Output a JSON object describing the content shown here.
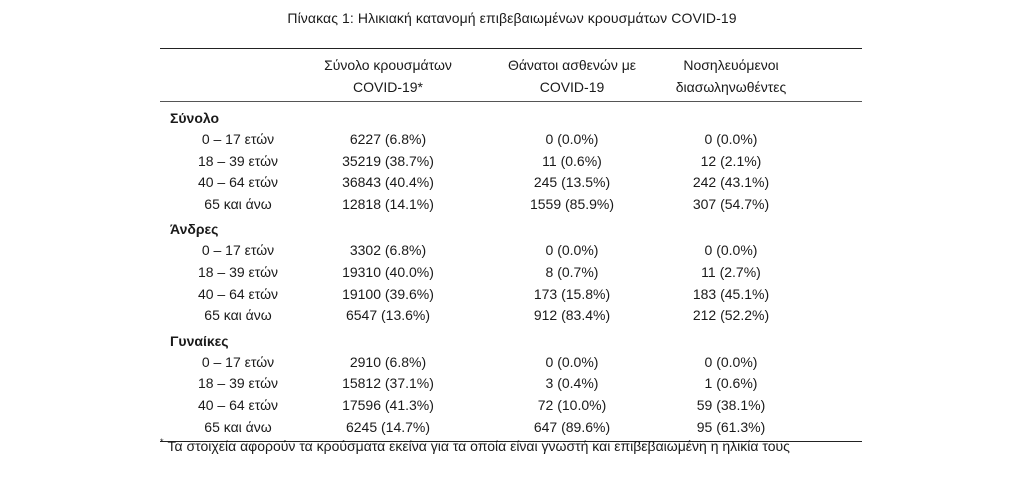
{
  "caption": "Πίνακας 1: Ηλικιακή κατανομή επιβεβαιωμένων κρουσμάτων COVID-19",
  "columns": [
    {
      "line1": "Σύνολο κρουσμάτων",
      "line2": "COVID-19*"
    },
    {
      "line1": "Θάνατοι ασθενών με",
      "line2": "COVID-19"
    },
    {
      "line1": "Νοσηλευόμενοι",
      "line2": "διασωληνωθέντες"
    }
  ],
  "groups": [
    {
      "label": "Σύνολο",
      "rows": [
        {
          "age": "0 – 17 ετών",
          "cases": "6227 (6.8%)",
          "deaths": "0 (0.0%)",
          "intubated": "0 (0.0%)"
        },
        {
          "age": "18 – 39 ετών",
          "cases": "35219 (38.7%)",
          "deaths": "11 (0.6%)",
          "intubated": "12 (2.1%)"
        },
        {
          "age": "40 – 64 ετών",
          "cases": "36843 (40.4%)",
          "deaths": "245 (13.5%)",
          "intubated": "242 (43.1%)"
        },
        {
          "age": "65 και άνω",
          "cases": "12818 (14.1%)",
          "deaths": "1559 (85.9%)",
          "intubated": "307 (54.7%)"
        }
      ]
    },
    {
      "label": "Άνδρες",
      "rows": [
        {
          "age": "0 – 17 ετών",
          "cases": "3302 (6.8%)",
          "deaths": "0 (0.0%)",
          "intubated": "0 (0.0%)"
        },
        {
          "age": "18 – 39 ετών",
          "cases": "19310 (40.0%)",
          "deaths": "8 (0.7%)",
          "intubated": "11 (2.7%)"
        },
        {
          "age": "40 – 64 ετών",
          "cases": "19100 (39.6%)",
          "deaths": "173 (15.8%)",
          "intubated": "183 (45.1%)"
        },
        {
          "age": "65 και άνω",
          "cases": "6547 (13.6%)",
          "deaths": "912 (83.4%)",
          "intubated": "212 (52.2%)"
        }
      ]
    },
    {
      "label": "Γυναίκες",
      "rows": [
        {
          "age": "0 – 17 ετών",
          "cases": "2910 (6.8%)",
          "deaths": "0 (0.0%)",
          "intubated": "0 (0.0%)"
        },
        {
          "age": "18 – 39 ετών",
          "cases": "15812 (37.1%)",
          "deaths": "3 (0.4%)",
          "intubated": "1 (0.6%)"
        },
        {
          "age": "40 – 64 ετών",
          "cases": "17596 (41.3%)",
          "deaths": "72 (10.0%)",
          "intubated": "59 (38.1%)"
        },
        {
          "age": "65 και άνω",
          "cases": "6245 (14.7%)",
          "deaths": "647 (89.6%)",
          "intubated": "95 (61.3%)"
        }
      ]
    }
  ],
  "footnote": {
    "marker": "*",
    "text": "Τα στοιχεία αφορούν τα κρούσματα εκείνα για τα οποία είναι γνωστή και επιβεβαιωμένη η ηλικία τους"
  }
}
